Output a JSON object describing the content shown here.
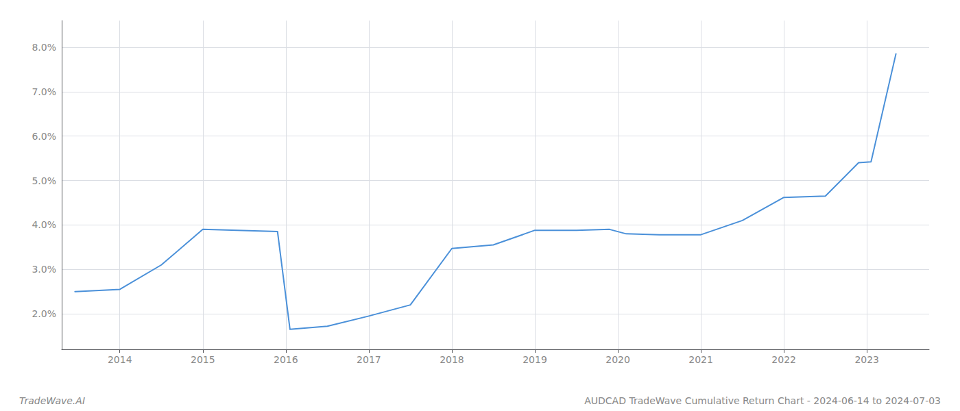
{
  "chart_data": {
    "type": "line",
    "x": [
      2013.46,
      2014.0,
      2014.5,
      2015.0,
      2015.9,
      2016.05,
      2016.5,
      2017.0,
      2017.5,
      2018.0,
      2018.5,
      2019.0,
      2019.5,
      2019.9,
      2020.1,
      2020.5,
      2021.0,
      2021.5,
      2022.0,
      2022.5,
      2022.9,
      2023.05,
      2023.35
    ],
    "values": [
      2.5,
      2.55,
      3.1,
      3.9,
      3.85,
      1.65,
      1.72,
      1.95,
      2.2,
      3.47,
      3.55,
      3.88,
      3.88,
      3.9,
      3.8,
      3.78,
      3.78,
      4.1,
      4.62,
      4.65,
      5.4,
      5.42,
      7.85
    ],
    "color": "#4a90d9",
    "xlim": [
      2013.3,
      2023.75
    ],
    "ylim": [
      1.2,
      8.6
    ],
    "xticks": [
      2014,
      2015,
      2016,
      2017,
      2018,
      2019,
      2020,
      2021,
      2022,
      2023
    ],
    "yticks": [
      {
        "value": 2.0,
        "label": "2.0%"
      },
      {
        "value": 3.0,
        "label": "3.0%"
      },
      {
        "value": 4.0,
        "label": "4.0%"
      },
      {
        "value": 5.0,
        "label": "5.0%"
      },
      {
        "value": 6.0,
        "label": "6.0%"
      },
      {
        "value": 7.0,
        "label": "7.0%"
      },
      {
        "value": 8.0,
        "label": "8.0%"
      }
    ],
    "annotations": [
      "TradeWave.AI",
      "AUDCAD TradeWave Cumulative Return Chart - 2024-06-14 to 2024-07-03"
    ],
    "grid": true
  }
}
